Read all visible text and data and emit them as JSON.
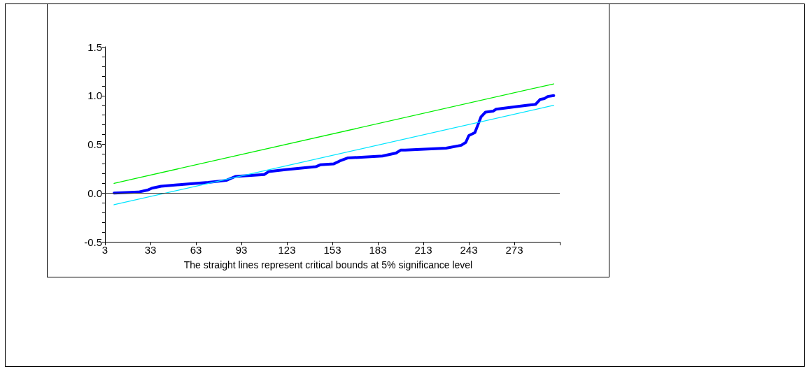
{
  "chart_data": {
    "type": "line",
    "annotations": [
      "The straight lines represent critical bounds at 5% significance level"
    ],
    "series": [
      {
        "color": "#0000ff",
        "x": [
          9,
          25,
          31,
          34,
          40,
          55,
          71,
          83,
          89,
          108,
          111,
          122,
          142,
          145,
          154,
          158,
          163,
          186,
          195,
          198,
          201,
          228,
          238,
          241,
          243,
          247,
          249,
          251,
          254,
          259,
          261,
          281,
          287,
          290,
          293,
          295,
          299
        ],
        "values": [
          0.0,
          0.01,
          0.03,
          0.05,
          0.07,
          0.09,
          0.11,
          0.13,
          0.17,
          0.19,
          0.22,
          0.24,
          0.27,
          0.29,
          0.3,
          0.33,
          0.36,
          0.38,
          0.41,
          0.44,
          0.44,
          0.46,
          0.49,
          0.52,
          0.59,
          0.62,
          0.7,
          0.78,
          0.83,
          0.84,
          0.86,
          0.9,
          0.91,
          0.96,
          0.97,
          0.99,
          1.0
        ]
      },
      {
        "color": "#00ee00",
        "x": [
          9,
          299
        ],
        "values": [
          0.1,
          1.12
        ]
      },
      {
        "color": "#00e5ff",
        "x": [
          9,
          299
        ],
        "values": [
          -0.12,
          0.9
        ]
      }
    ],
    "ref_lines": [
      {
        "axis": "y",
        "value": 0,
        "color": "#333333"
      }
    ],
    "xlim": [
      3,
      303
    ],
    "xticks": [
      3,
      33,
      63,
      93,
      123,
      153,
      183,
      213,
      243,
      273,
      {
        "value": 303,
        "label": null
      }
    ],
    "ylim": [
      -0.5,
      1.5
    ],
    "yticks": [
      {
        "value": -0.5,
        "label": "-0.5"
      },
      {
        "value": 0,
        "label": "0.0"
      },
      {
        "value": 0.5,
        "label": "0.5"
      },
      {
        "value": 1,
        "label": "1.0"
      },
      {
        "value": 1.5,
        "label": "1.5"
      }
    ],
    "grid": false,
    "marker": "none",
    "line_style": "solid"
  }
}
